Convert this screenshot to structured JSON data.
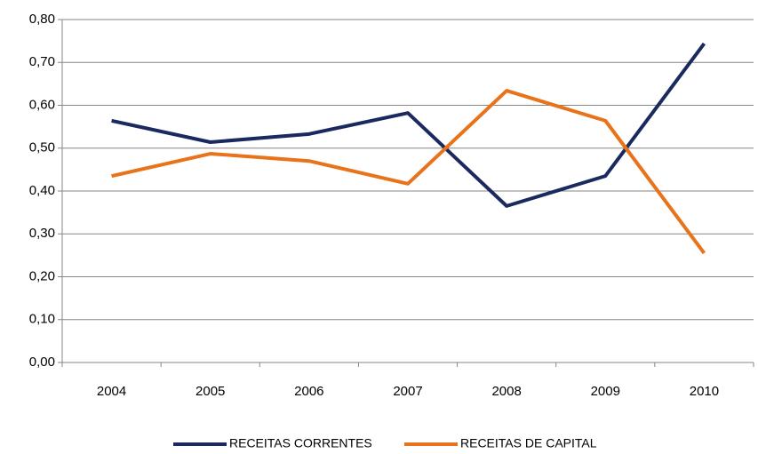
{
  "chart_data": {
    "type": "line",
    "categories": [
      "2004",
      "2005",
      "2006",
      "2007",
      "2008",
      "2009",
      "2010"
    ],
    "series": [
      {
        "name": "RECEITAS CORRENTES",
        "color": "#1b2a5e",
        "values": [
          0.564,
          0.514,
          0.533,
          0.582,
          0.365,
          0.435,
          0.744
        ]
      },
      {
        "name": "RECEITAS DE CAPITAL",
        "color": "#e8731a",
        "values": [
          0.435,
          0.487,
          0.47,
          0.417,
          0.634,
          0.564,
          0.255
        ]
      }
    ],
    "ylim": [
      0,
      0.8
    ],
    "yticks": [
      {
        "value": 0,
        "label": "0,00"
      },
      {
        "value": 0.1,
        "label": "0,10"
      },
      {
        "value": 0.2,
        "label": "0,20"
      },
      {
        "value": 0.3,
        "label": "0,30"
      },
      {
        "value": 0.4,
        "label": "0,40"
      },
      {
        "value": 0.5,
        "label": "0,50"
      },
      {
        "value": 0.6,
        "label": "0,60"
      },
      {
        "value": 0.7,
        "label": "0,70"
      },
      {
        "value": 0.8,
        "label": "0,80"
      }
    ],
    "grid": true,
    "legend": "bottom"
  }
}
